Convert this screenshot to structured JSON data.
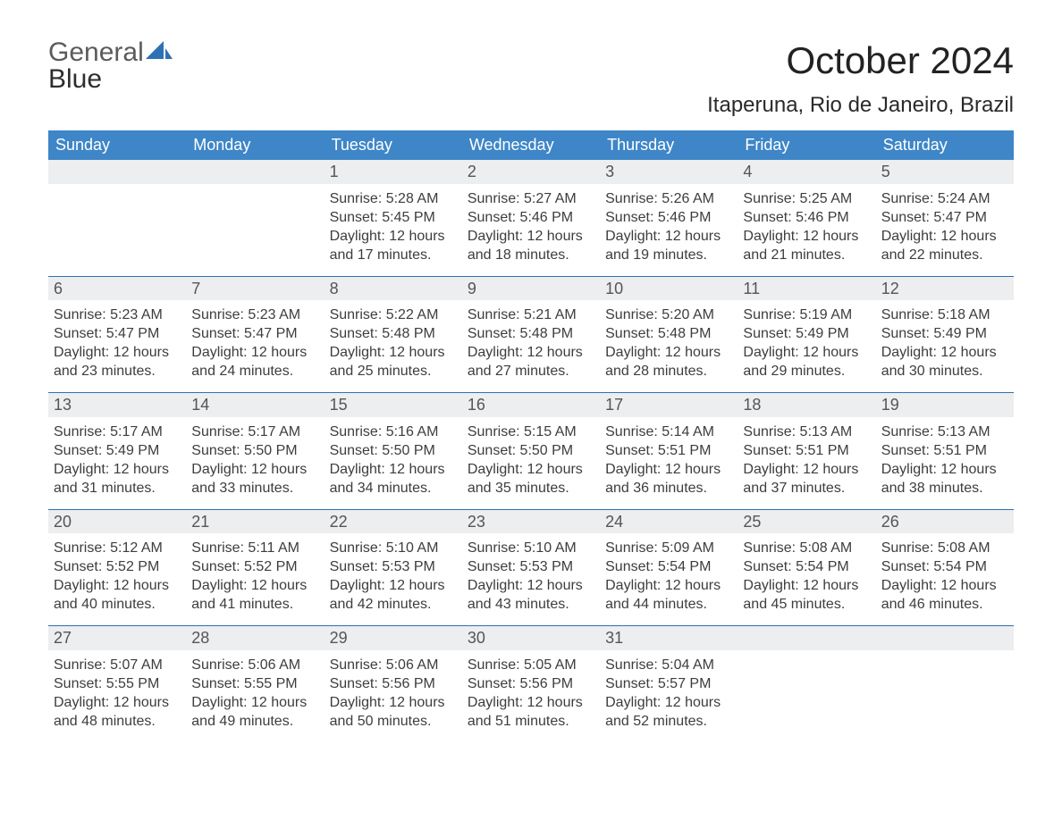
{
  "brand": {
    "part1": "General",
    "part2": "Blue"
  },
  "title": "October 2024",
  "location": "Itaperuna, Rio de Janeiro, Brazil",
  "weekdays": [
    "Sunday",
    "Monday",
    "Tuesday",
    "Wednesday",
    "Thursday",
    "Friday",
    "Saturday"
  ],
  "colors": {
    "header_blue": "#3e86c7",
    "accent_blue": "#2d71b3",
    "date_row_bg": "#eceeef",
    "logo_gray": "#5b5b5b",
    "logo_blue": "#2d71b3",
    "background": "#ffffff"
  },
  "weeks": [
    [
      {
        "empty": true
      },
      {
        "empty": true
      },
      {
        "date": "1",
        "sunrise": "Sunrise: 5:28 AM",
        "sunset": "Sunset: 5:45 PM",
        "daylight": "Daylight: 12 hours and 17 minutes."
      },
      {
        "date": "2",
        "sunrise": "Sunrise: 5:27 AM",
        "sunset": "Sunset: 5:46 PM",
        "daylight": "Daylight: 12 hours and 18 minutes."
      },
      {
        "date": "3",
        "sunrise": "Sunrise: 5:26 AM",
        "sunset": "Sunset: 5:46 PM",
        "daylight": "Daylight: 12 hours and 19 minutes."
      },
      {
        "date": "4",
        "sunrise": "Sunrise: 5:25 AM",
        "sunset": "Sunset: 5:46 PM",
        "daylight": "Daylight: 12 hours and 21 minutes."
      },
      {
        "date": "5",
        "sunrise": "Sunrise: 5:24 AM",
        "sunset": "Sunset: 5:47 PM",
        "daylight": "Daylight: 12 hours and 22 minutes."
      }
    ],
    [
      {
        "date": "6",
        "sunrise": "Sunrise: 5:23 AM",
        "sunset": "Sunset: 5:47 PM",
        "daylight": "Daylight: 12 hours and 23 minutes."
      },
      {
        "date": "7",
        "sunrise": "Sunrise: 5:23 AM",
        "sunset": "Sunset: 5:47 PM",
        "daylight": "Daylight: 12 hours and 24 minutes."
      },
      {
        "date": "8",
        "sunrise": "Sunrise: 5:22 AM",
        "sunset": "Sunset: 5:48 PM",
        "daylight": "Daylight: 12 hours and 25 minutes."
      },
      {
        "date": "9",
        "sunrise": "Sunrise: 5:21 AM",
        "sunset": "Sunset: 5:48 PM",
        "daylight": "Daylight: 12 hours and 27 minutes."
      },
      {
        "date": "10",
        "sunrise": "Sunrise: 5:20 AM",
        "sunset": "Sunset: 5:48 PM",
        "daylight": "Daylight: 12 hours and 28 minutes."
      },
      {
        "date": "11",
        "sunrise": "Sunrise: 5:19 AM",
        "sunset": "Sunset: 5:49 PM",
        "daylight": "Daylight: 12 hours and 29 minutes."
      },
      {
        "date": "12",
        "sunrise": "Sunrise: 5:18 AM",
        "sunset": "Sunset: 5:49 PM",
        "daylight": "Daylight: 12 hours and 30 minutes."
      }
    ],
    [
      {
        "date": "13",
        "sunrise": "Sunrise: 5:17 AM",
        "sunset": "Sunset: 5:49 PM",
        "daylight": "Daylight: 12 hours and 31 minutes."
      },
      {
        "date": "14",
        "sunrise": "Sunrise: 5:17 AM",
        "sunset": "Sunset: 5:50 PM",
        "daylight": "Daylight: 12 hours and 33 minutes."
      },
      {
        "date": "15",
        "sunrise": "Sunrise: 5:16 AM",
        "sunset": "Sunset: 5:50 PM",
        "daylight": "Daylight: 12 hours and 34 minutes."
      },
      {
        "date": "16",
        "sunrise": "Sunrise: 5:15 AM",
        "sunset": "Sunset: 5:50 PM",
        "daylight": "Daylight: 12 hours and 35 minutes."
      },
      {
        "date": "17",
        "sunrise": "Sunrise: 5:14 AM",
        "sunset": "Sunset: 5:51 PM",
        "daylight": "Daylight: 12 hours and 36 minutes."
      },
      {
        "date": "18",
        "sunrise": "Sunrise: 5:13 AM",
        "sunset": "Sunset: 5:51 PM",
        "daylight": "Daylight: 12 hours and 37 minutes."
      },
      {
        "date": "19",
        "sunrise": "Sunrise: 5:13 AM",
        "sunset": "Sunset: 5:51 PM",
        "daylight": "Daylight: 12 hours and 38 minutes."
      }
    ],
    [
      {
        "date": "20",
        "sunrise": "Sunrise: 5:12 AM",
        "sunset": "Sunset: 5:52 PM",
        "daylight": "Daylight: 12 hours and 40 minutes."
      },
      {
        "date": "21",
        "sunrise": "Sunrise: 5:11 AM",
        "sunset": "Sunset: 5:52 PM",
        "daylight": "Daylight: 12 hours and 41 minutes."
      },
      {
        "date": "22",
        "sunrise": "Sunrise: 5:10 AM",
        "sunset": "Sunset: 5:53 PM",
        "daylight": "Daylight: 12 hours and 42 minutes."
      },
      {
        "date": "23",
        "sunrise": "Sunrise: 5:10 AM",
        "sunset": "Sunset: 5:53 PM",
        "daylight": "Daylight: 12 hours and 43 minutes."
      },
      {
        "date": "24",
        "sunrise": "Sunrise: 5:09 AM",
        "sunset": "Sunset: 5:54 PM",
        "daylight": "Daylight: 12 hours and 44 minutes."
      },
      {
        "date": "25",
        "sunrise": "Sunrise: 5:08 AM",
        "sunset": "Sunset: 5:54 PM",
        "daylight": "Daylight: 12 hours and 45 minutes."
      },
      {
        "date": "26",
        "sunrise": "Sunrise: 5:08 AM",
        "sunset": "Sunset: 5:54 PM",
        "daylight": "Daylight: 12 hours and 46 minutes."
      }
    ],
    [
      {
        "date": "27",
        "sunrise": "Sunrise: 5:07 AM",
        "sunset": "Sunset: 5:55 PM",
        "daylight": "Daylight: 12 hours and 48 minutes."
      },
      {
        "date": "28",
        "sunrise": "Sunrise: 5:06 AM",
        "sunset": "Sunset: 5:55 PM",
        "daylight": "Daylight: 12 hours and 49 minutes."
      },
      {
        "date": "29",
        "sunrise": "Sunrise: 5:06 AM",
        "sunset": "Sunset: 5:56 PM",
        "daylight": "Daylight: 12 hours and 50 minutes."
      },
      {
        "date": "30",
        "sunrise": "Sunrise: 5:05 AM",
        "sunset": "Sunset: 5:56 PM",
        "daylight": "Daylight: 12 hours and 51 minutes."
      },
      {
        "date": "31",
        "sunrise": "Sunrise: 5:04 AM",
        "sunset": "Sunset: 5:57 PM",
        "daylight": "Daylight: 12 hours and 52 minutes."
      },
      {
        "empty": true
      },
      {
        "empty": true
      }
    ]
  ]
}
